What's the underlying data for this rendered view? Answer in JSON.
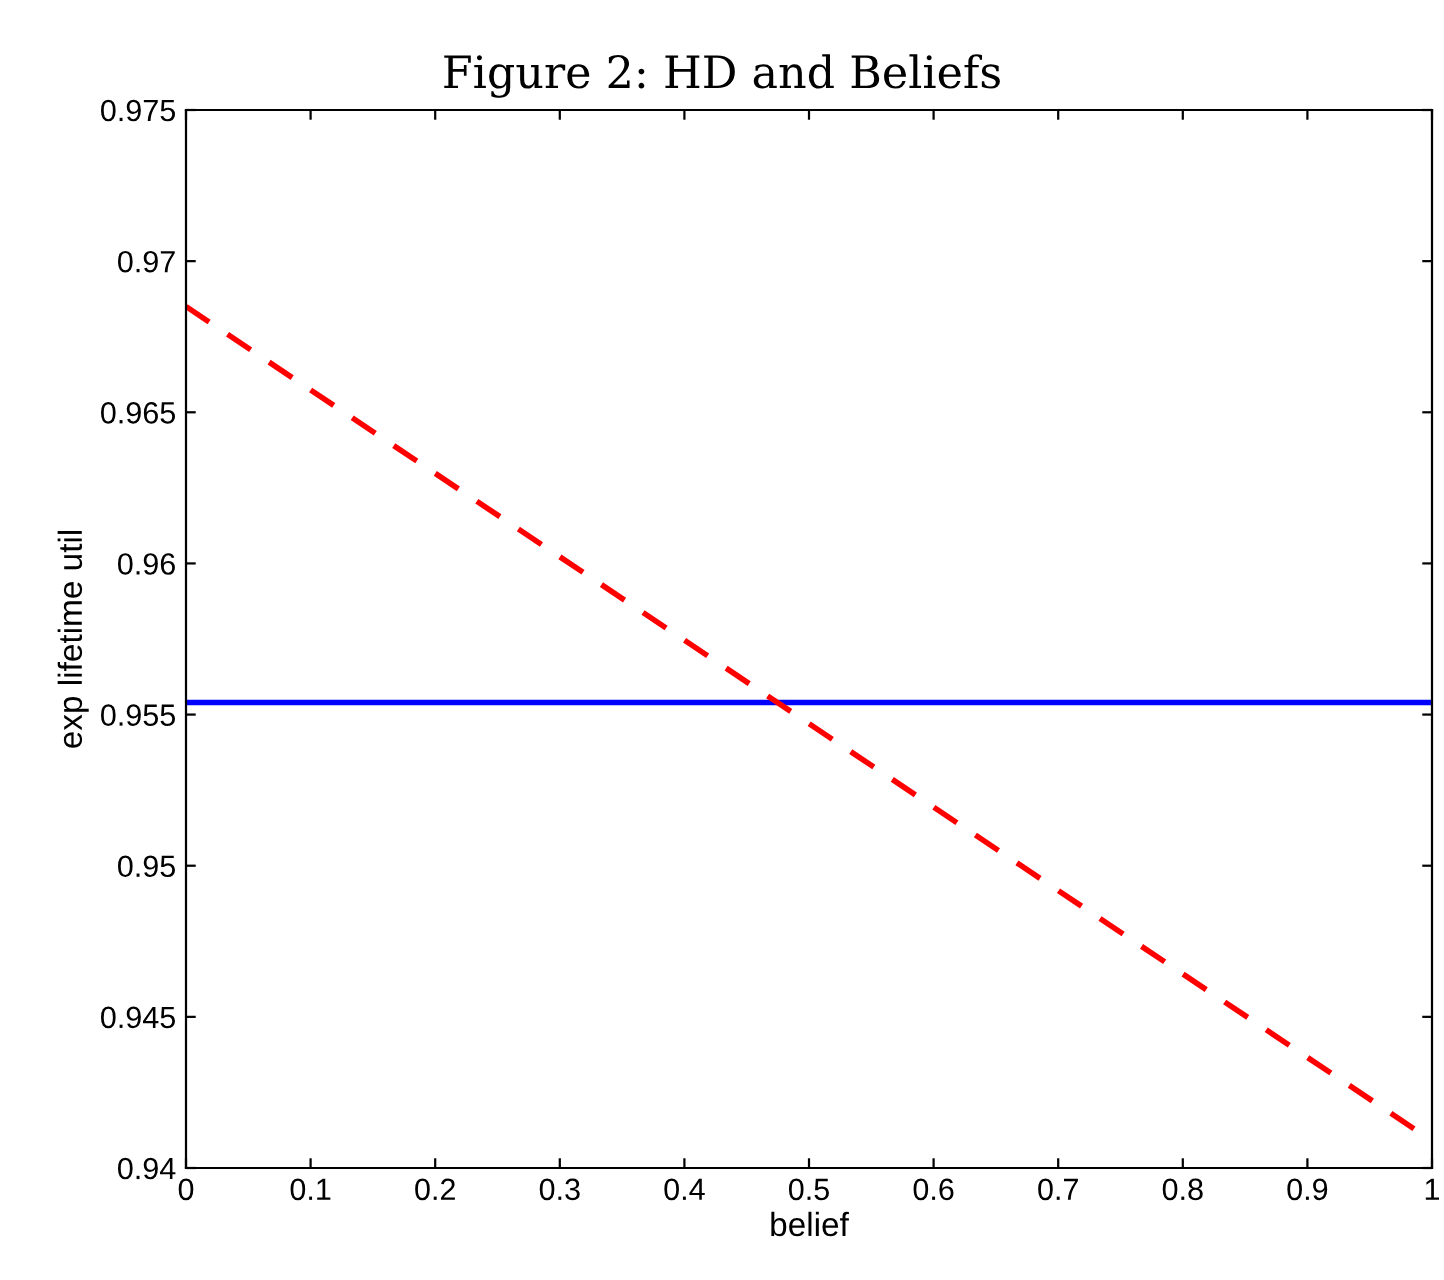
{
  "chart_data": {
    "type": "line",
    "title": "Figure 2: HD and Beliefs",
    "xlabel": "belief",
    "ylabel": "exp lifetime util",
    "x": [
      0,
      1
    ],
    "series": [
      {
        "color": "#0000ff",
        "values": [
          0.9554,
          0.9554
        ],
        "line_style": "solid"
      },
      {
        "color": "#ff0000",
        "values": [
          0.9685,
          0.9409
        ],
        "line_style": "dashed"
      }
    ],
    "xlim": [
      0,
      1
    ],
    "xticks": [
      0,
      0.1,
      0.2,
      0.3,
      0.4,
      0.5,
      0.6,
      0.7,
      0.8,
      0.9,
      1
    ],
    "ylim": [
      0.94,
      0.975
    ],
    "yticks": [
      0.94,
      0.945,
      0.95,
      0.955,
      0.96,
      0.965,
      0.97,
      0.975
    ],
    "grid": false,
    "legend": false,
    "marker": "none"
  }
}
